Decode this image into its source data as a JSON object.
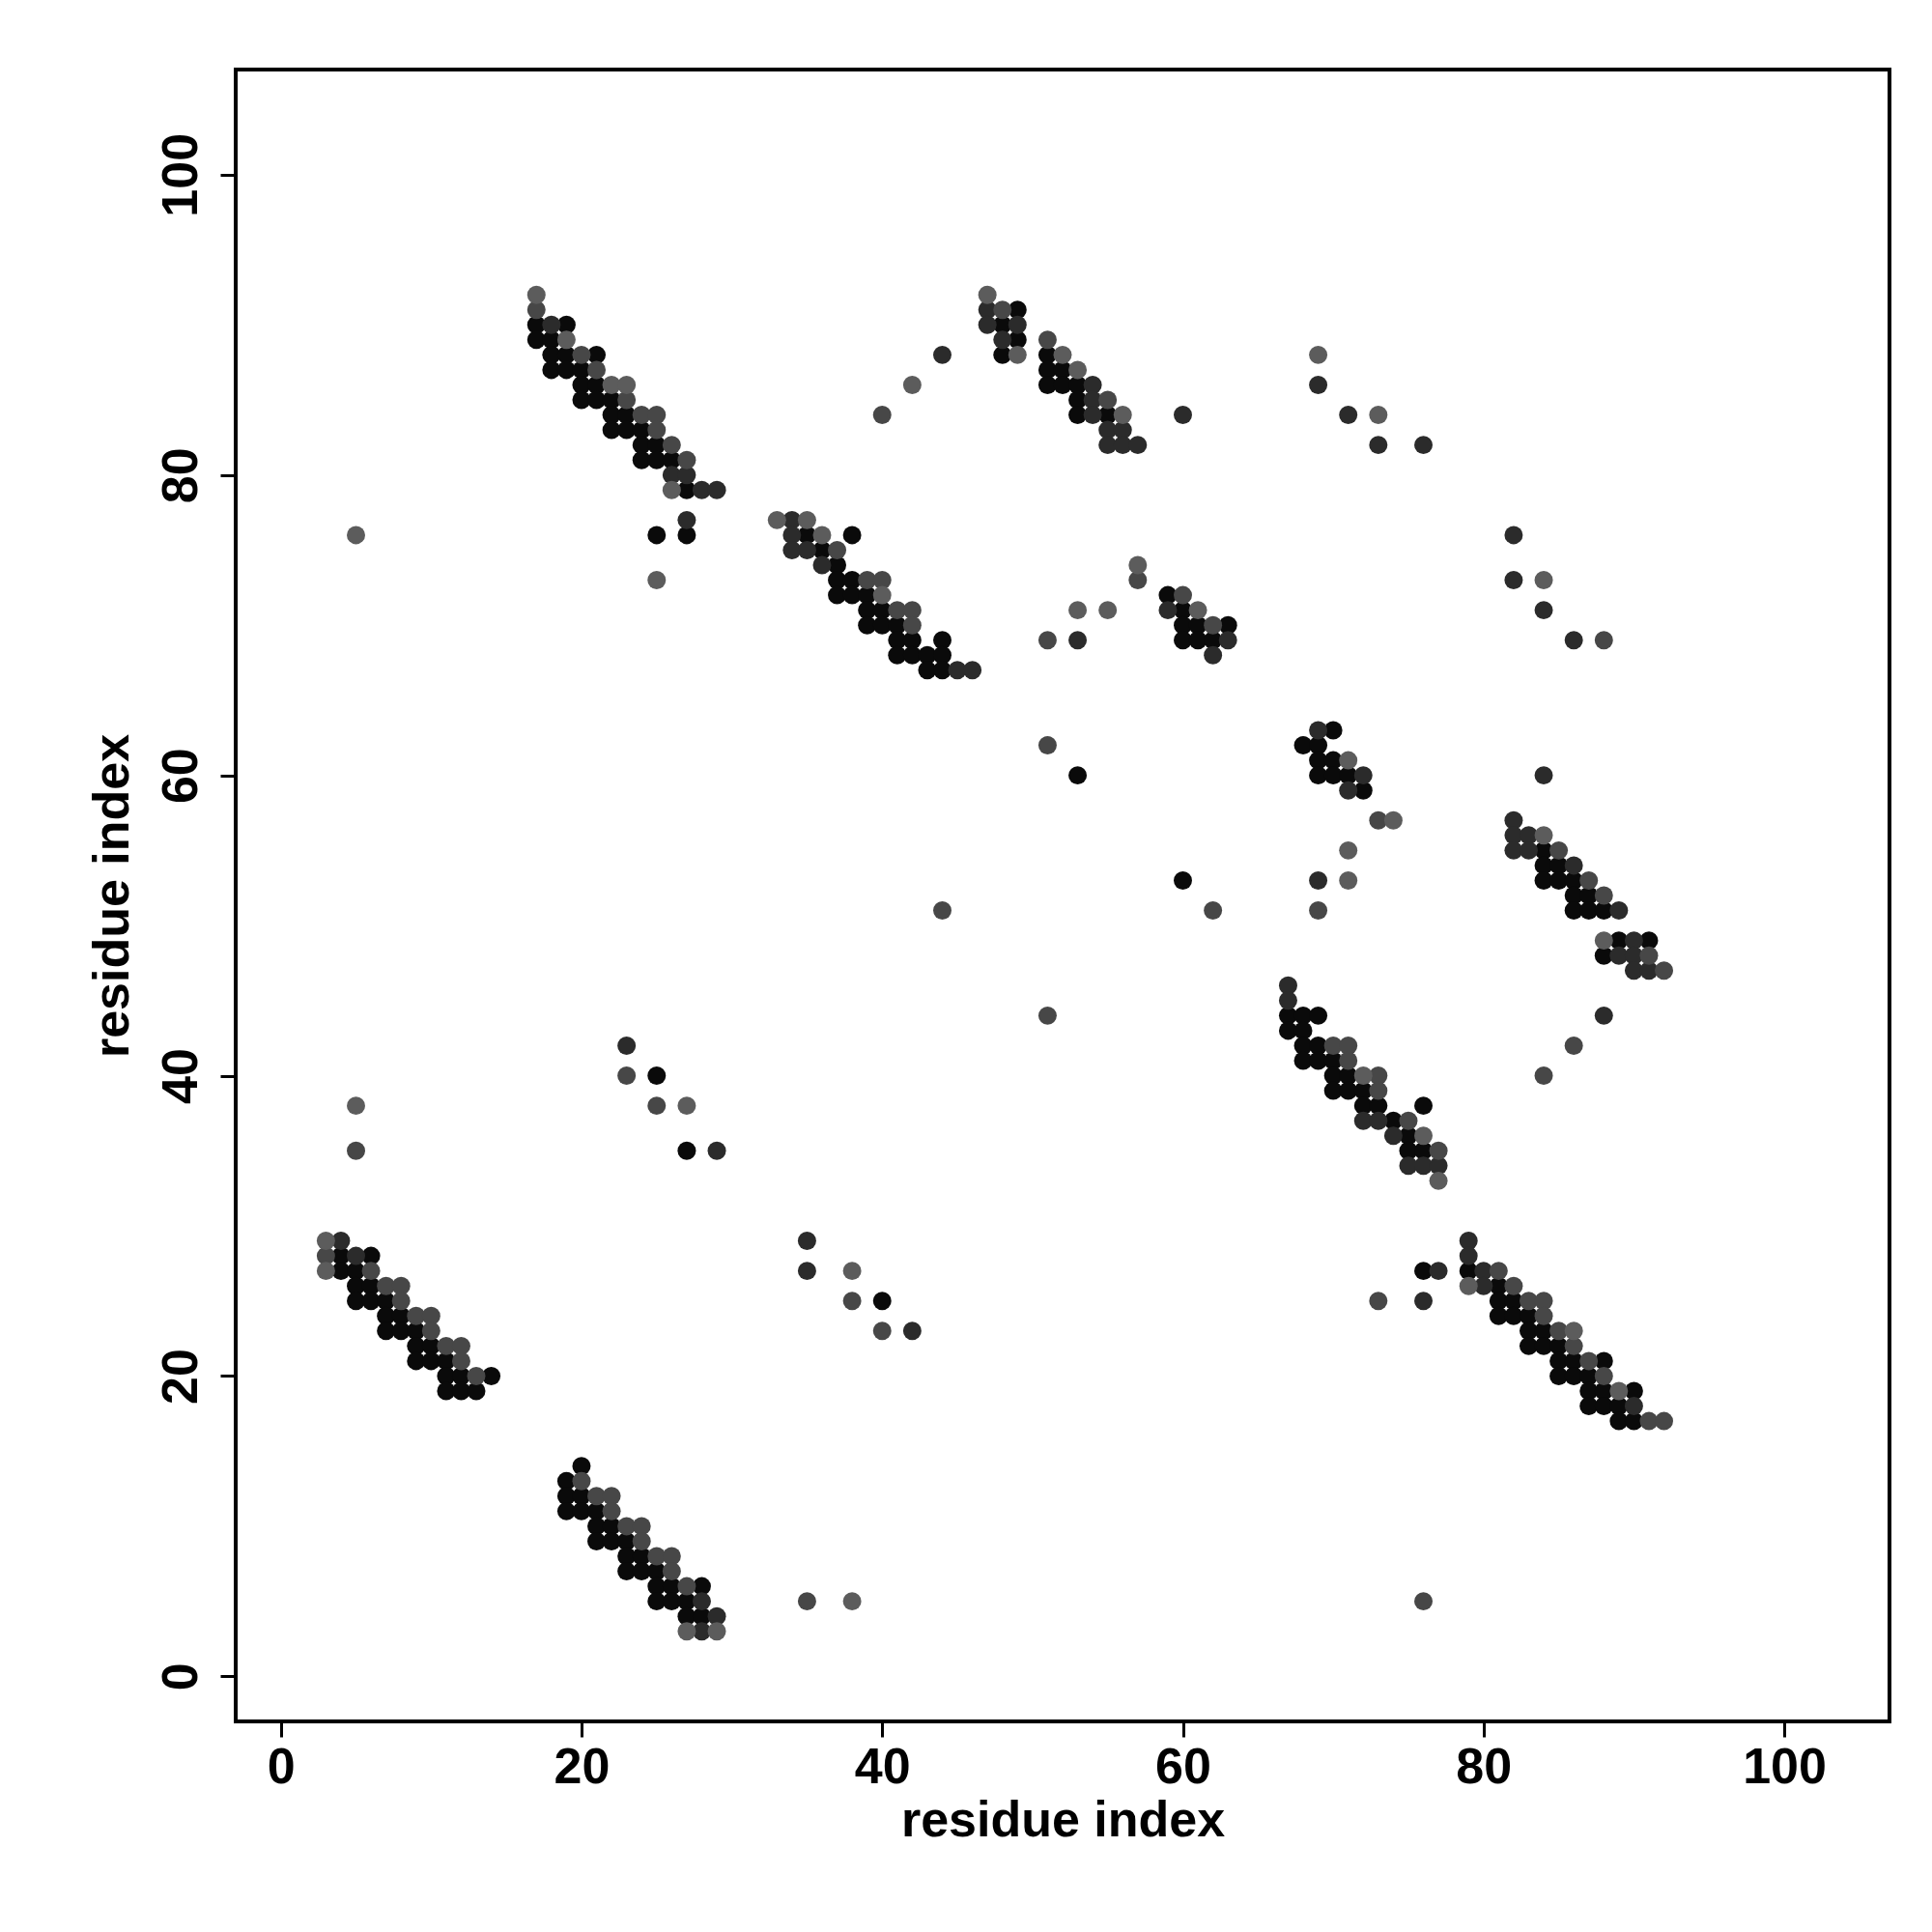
{
  "chart_data": {
    "type": "scatter",
    "xlabel": "residue index",
    "ylabel": "residue index",
    "xlim": [
      -3,
      107
    ],
    "ylim": [
      -3,
      107
    ],
    "xticks": [
      0,
      20,
      40,
      60,
      80,
      100
    ],
    "yticks": [
      0,
      20,
      40,
      60,
      80,
      100
    ],
    "marker": "circle",
    "series": [
      {
        "color": "#0a0a0a",
        "x": [
          17,
          19,
          17,
          18,
          18,
          19,
          21,
          18,
          19,
          20,
          20,
          21,
          20,
          21,
          22,
          22,
          23,
          22,
          23,
          24,
          24,
          25,
          24,
          25,
          26,
          27,
          25,
          27,
          35,
          38,
          36,
          37,
          37,
          38,
          37,
          38,
          39,
          39,
          40,
          39,
          40,
          41,
          41,
          42,
          44,
          41,
          42,
          43,
          44,
          43,
          44,
          49,
          48,
          49,
          48,
          51,
          51,
          52,
          51,
          52,
          53,
          53,
          53,
          55,
          59,
          60,
          60,
          61,
          63,
          60,
          61,
          62,
          53,
          70,
          68,
          69,
          69,
          70,
          69,
          70,
          71,
          72,
          60,
          84,
          84,
          85,
          84,
          85,
          86,
          86,
          87,
          86,
          87,
          88,
          89,
          91,
          88,
          67,
          68,
          69,
          67,
          68,
          68,
          69,
          68,
          69,
          70,
          70,
          71,
          70,
          71,
          72,
          72,
          73,
          76,
          74,
          75,
          75,
          76,
          25,
          27,
          40,
          76,
          4,
          6,
          4,
          5,
          5,
          6,
          5,
          6,
          7,
          7,
          8,
          7,
          8,
          9,
          9,
          10,
          9,
          10,
          11,
          11,
          12,
          14,
          11,
          12,
          13,
          20,
          19,
          19,
          20,
          19,
          20,
          21,
          21,
          22,
          21,
          22,
          23,
          23,
          24,
          23,
          24,
          25,
          25,
          26,
          28,
          25,
          26,
          27,
          27,
          28,
          79,
          81,
          81,
          82,
          81,
          82,
          83,
          83,
          84,
          83,
          84,
          85,
          85,
          86,
          88,
          85,
          86,
          87,
          87,
          88,
          90,
          87,
          88,
          89,
          89,
          90
        ],
        "values": [
          90,
          90,
          89,
          89,
          88,
          88,
          88,
          87,
          87,
          87,
          86,
          86,
          85,
          85,
          85,
          84,
          84,
          83,
          83,
          83,
          82,
          82,
          81,
          81,
          81,
          79,
          76,
          76,
          76,
          76,
          75,
          74,
          73,
          73,
          72,
          72,
          72,
          71,
          71,
          70,
          70,
          70,
          69,
          69,
          69,
          68,
          68,
          68,
          68,
          67,
          67,
          91,
          90,
          89,
          88,
          88,
          87,
          87,
          86,
          86,
          86,
          85,
          84,
          84,
          72,
          71,
          70,
          70,
          70,
          69,
          69,
          69,
          60,
          63,
          62,
          62,
          61,
          61,
          60,
          60,
          60,
          59,
          53,
          55,
          54,
          54,
          53,
          53,
          53,
          52,
          52,
          51,
          51,
          51,
          49,
          49,
          48,
          44,
          44,
          44,
          43,
          43,
          42,
          42,
          41,
          41,
          41,
          40,
          40,
          39,
          39,
          39,
          38,
          38,
          38,
          37,
          36,
          35,
          35,
          40,
          35,
          25,
          27,
          28,
          28,
          27,
          27,
          26,
          26,
          25,
          25,
          25,
          24,
          24,
          23,
          23,
          23,
          22,
          22,
          21,
          21,
          21,
          20,
          20,
          20,
          19,
          19,
          19,
          14,
          13,
          12,
          12,
          11,
          11,
          11,
          10,
          10,
          9,
          9,
          9,
          8,
          8,
          7,
          7,
          7,
          6,
          6,
          6,
          5,
          5,
          5,
          4,
          4,
          27,
          26,
          25,
          25,
          24,
          24,
          24,
          23,
          23,
          22,
          22,
          22,
          21,
          21,
          21,
          20,
          20,
          20,
          19,
          19,
          19,
          18,
          18,
          18,
          17,
          17
        ]
      },
      {
        "color": "#2b2b2b",
        "x": [
          18,
          26,
          27,
          28,
          29,
          27,
          34,
          34,
          34,
          35,
          36,
          45,
          46,
          44,
          47,
          47,
          49,
          48,
          54,
          54,
          54,
          55,
          56,
          55,
          56,
          57,
          60,
          69,
          71,
          73,
          76,
          53,
          59,
          63,
          62,
          69,
          72,
          71,
          69,
          82,
          82,
          84,
          86,
          84,
          82,
          82,
          83,
          82,
          83,
          86,
          89,
          90,
          89,
          90,
          90,
          91,
          88,
          67,
          67,
          72,
          73,
          74,
          75,
          76,
          77,
          23,
          29,
          35,
          35,
          42,
          77,
          76,
          4,
          5,
          28,
          29,
          28,
          79,
          79,
          80,
          80,
          90
        ],
        "values": [
          90,
          80,
          80,
          79,
          79,
          77,
          77,
          76,
          75,
          75,
          74,
          67,
          67,
          88,
          91,
          90,
          90,
          89,
          86,
          85,
          84,
          83,
          83,
          82,
          82,
          82,
          84,
          86,
          84,
          82,
          82,
          69,
          71,
          69,
          68,
          63,
          60,
          59,
          53,
          76,
          73,
          71,
          69,
          60,
          57,
          56,
          56,
          55,
          55,
          54,
          51,
          49,
          48,
          48,
          47,
          47,
          44,
          46,
          45,
          37,
          37,
          36,
          34,
          34,
          34,
          42,
          35,
          29,
          27,
          23,
          27,
          25,
          29,
          28,
          5,
          4,
          3,
          29,
          28,
          27,
          26,
          18
        ]
      },
      {
        "color": "#474747",
        "x": [
          17,
          20,
          21,
          23,
          24,
          25,
          25,
          26,
          27,
          37,
          39,
          40,
          41,
          42,
          42,
          40,
          48,
          51,
          55,
          57,
          51,
          60,
          62,
          51,
          73,
          69,
          62,
          44,
          51,
          88,
          85,
          87,
          88,
          91,
          92,
          86,
          84,
          70,
          71,
          71,
          73,
          73,
          75,
          77,
          23,
          25,
          5,
          38,
          40,
          35,
          76,
          73,
          3,
          6,
          7,
          8,
          8,
          9,
          10,
          10,
          11,
          12,
          12,
          13,
          20,
          21,
          22,
          22,
          23,
          24,
          24,
          25,
          26,
          26,
          27,
          81,
          82,
          83,
          84,
          84,
          85,
          86,
          87,
          88,
          91,
          92
        ],
        "values": [
          91,
          88,
          87,
          85,
          84,
          84,
          83,
          82,
          81,
          75,
          73,
          73,
          71,
          71,
          70,
          84,
          91,
          89,
          85,
          73,
          69,
          72,
          70,
          62,
          57,
          51,
          51,
          51,
          44,
          69,
          55,
          53,
          52,
          48,
          47,
          42,
          40,
          42,
          42,
          41,
          40,
          39,
          37,
          35,
          40,
          38,
          35,
          25,
          23,
          5,
          5,
          25,
          28,
          27,
          26,
          26,
          25,
          24,
          24,
          23,
          22,
          22,
          21,
          20,
          13,
          12,
          12,
          11,
          10,
          10,
          9,
          8,
          8,
          7,
          6,
          27,
          26,
          25,
          25,
          24,
          23,
          22,
          21,
          20,
          17,
          17
        ]
      },
      {
        "color": "#5c5c5c",
        "x": [
          17,
          19,
          22,
          23,
          26,
          5,
          25,
          33,
          35,
          36,
          40,
          42,
          47,
          49,
          52,
          53,
          56,
          69,
          73,
          57,
          53,
          55,
          61,
          71,
          74,
          71,
          71,
          84,
          84,
          88,
          72,
          76,
          77,
          5,
          27,
          38,
          38,
          3,
          3,
          27,
          29,
          79,
          86,
          89
        ],
        "values": [
          92,
          89,
          86,
          86,
          79,
          76,
          73,
          77,
          77,
          76,
          72,
          86,
          92,
          88,
          88,
          87,
          84,
          88,
          84,
          74,
          71,
          71,
          71,
          61,
          57,
          55,
          53,
          73,
          56,
          49,
          40,
          36,
          33,
          38,
          38,
          27,
          5,
          29,
          27,
          3,
          3,
          26,
          23,
          19
        ]
      }
    ]
  }
}
